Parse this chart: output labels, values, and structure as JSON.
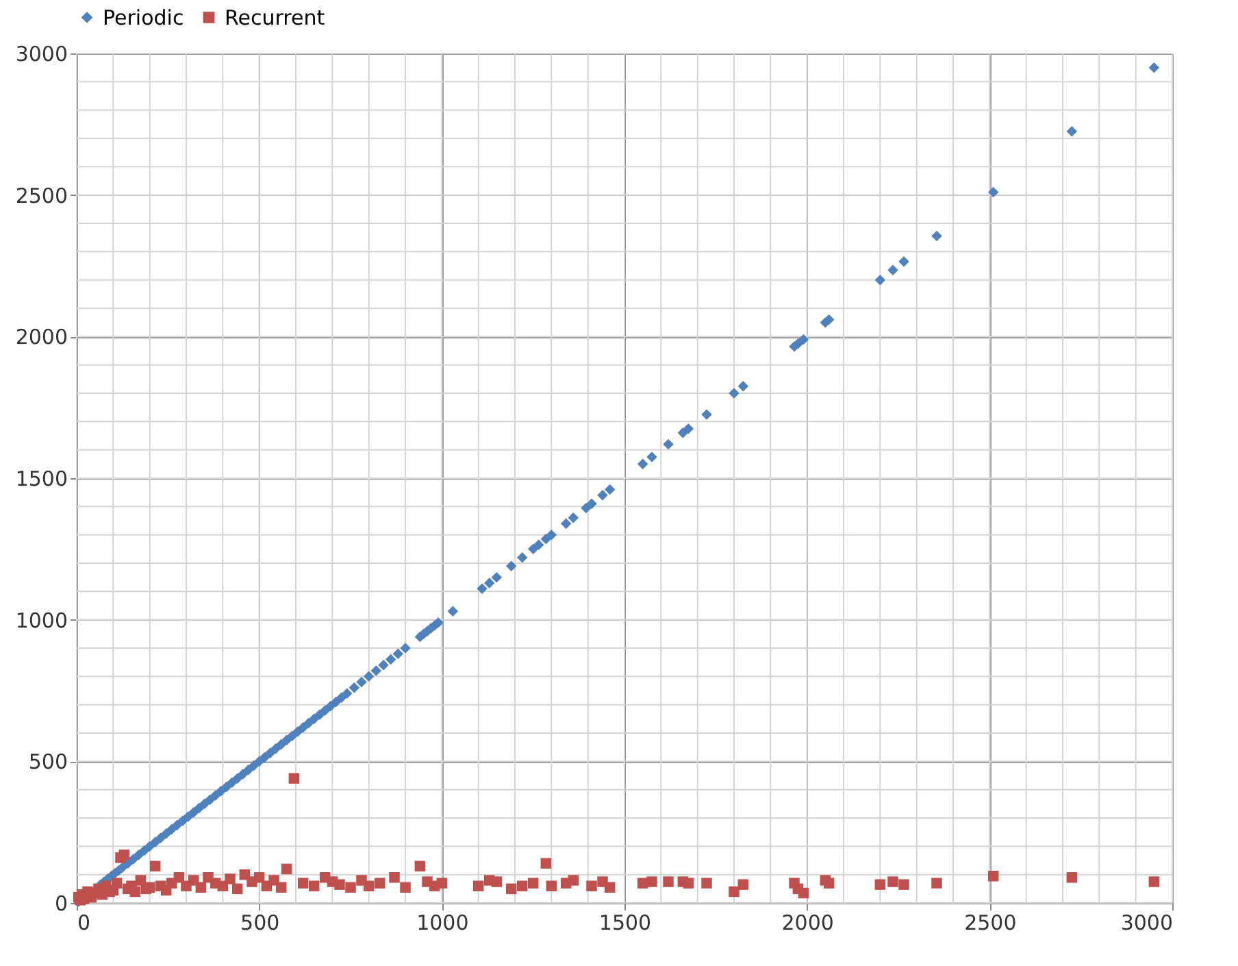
{
  "chart_data": {
    "type": "scatter",
    "xlim": [
      0,
      3000
    ],
    "ylim": [
      0,
      3000
    ],
    "xticks": [
      0,
      500,
      1000,
      1500,
      2000,
      2500,
      3000
    ],
    "yticks": [
      0,
      500,
      1000,
      1500,
      2000,
      2500,
      3000
    ],
    "grid": true,
    "legend": "top",
    "series": [
      {
        "name": "Periodic",
        "color": "#4f81bd",
        "marker": "diamond",
        "x": [
          5,
          65,
          75,
          85,
          95,
          105,
          115,
          125,
          140,
          155,
          170,
          185,
          200,
          215,
          230,
          245,
          260,
          275,
          290,
          305,
          320,
          335,
          350,
          365,
          380,
          395,
          410,
          425,
          440,
          455,
          470,
          485,
          500,
          515,
          530,
          545,
          560,
          575,
          590,
          605,
          620,
          635,
          650,
          665,
          680,
          695,
          710,
          725,
          740,
          760,
          780,
          800,
          820,
          840,
          860,
          880,
          900,
          940,
          950,
          960,
          970,
          980,
          990,
          1030,
          1110,
          1130,
          1150,
          1190,
          1220,
          1250,
          1265,
          1285,
          1300,
          1340,
          1360,
          1395,
          1410,
          1440,
          1460,
          1550,
          1575,
          1620,
          1660,
          1675,
          1725,
          1800,
          1825,
          1965,
          1975,
          1990,
          2050,
          2060,
          2200,
          2235,
          2265,
          2355,
          2510,
          2725,
          2950
        ],
        "values": [
          5,
          65,
          75,
          85,
          95,
          105,
          115,
          125,
          140,
          155,
          170,
          185,
          200,
          215,
          230,
          245,
          260,
          275,
          290,
          305,
          320,
          335,
          350,
          365,
          380,
          395,
          410,
          425,
          440,
          455,
          470,
          485,
          500,
          515,
          530,
          545,
          560,
          575,
          590,
          605,
          620,
          635,
          650,
          665,
          680,
          695,
          710,
          725,
          740,
          760,
          780,
          800,
          820,
          840,
          860,
          880,
          900,
          940,
          950,
          960,
          970,
          980,
          990,
          1030,
          1110,
          1130,
          1150,
          1190,
          1220,
          1250,
          1265,
          1285,
          1300,
          1340,
          1360,
          1395,
          1410,
          1440,
          1460,
          1550,
          1575,
          1620,
          1660,
          1675,
          1725,
          1800,
          1825,
          1965,
          1975,
          1990,
          2050,
          2060,
          2200,
          2235,
          2265,
          2355,
          2510,
          2725,
          2950
        ]
      },
      {
        "name": "Recurrent",
        "color": "#c0504d",
        "marker": "square",
        "x": [
          5,
          10,
          15,
          20,
          30,
          40,
          50,
          60,
          70,
          80,
          90,
          100,
          110,
          120,
          130,
          140,
          150,
          160,
          175,
          190,
          200,
          215,
          230,
          245,
          260,
          280,
          300,
          320,
          340,
          360,
          380,
          400,
          420,
          440,
          460,
          480,
          500,
          520,
          540,
          560,
          575,
          595,
          620,
          650,
          680,
          700,
          720,
          750,
          780,
          800,
          830,
          870,
          900,
          940,
          960,
          980,
          1000,
          1100,
          1130,
          1150,
          1190,
          1220,
          1250,
          1285,
          1300,
          1340,
          1360,
          1410,
          1440,
          1460,
          1550,
          1575,
          1620,
          1660,
          1675,
          1725,
          1800,
          1825,
          1965,
          1975,
          1990,
          2050,
          2060,
          2200,
          2235,
          2265,
          2355,
          2510,
          2725,
          2950
        ],
        "values": [
          20,
          10,
          30,
          15,
          40,
          20,
          35,
          50,
          30,
          60,
          40,
          45,
          70,
          160,
          170,
          50,
          60,
          40,
          80,
          50,
          55,
          130,
          60,
          45,
          70,
          90,
          60,
          80,
          55,
          90,
          70,
          60,
          85,
          50,
          100,
          75,
          90,
          60,
          80,
          55,
          120,
          440,
          70,
          60,
          90,
          75,
          65,
          55,
          80,
          60,
          70,
          90,
          55,
          130,
          75,
          60,
          70,
          60,
          80,
          75,
          50,
          60,
          70,
          140,
          60,
          70,
          80,
          60,
          75,
          55,
          70,
          75,
          75,
          75,
          70,
          70,
          40,
          65,
          70,
          50,
          35,
          80,
          70,
          65,
          75,
          65,
          70,
          95,
          90,
          75
        ]
      }
    ]
  }
}
